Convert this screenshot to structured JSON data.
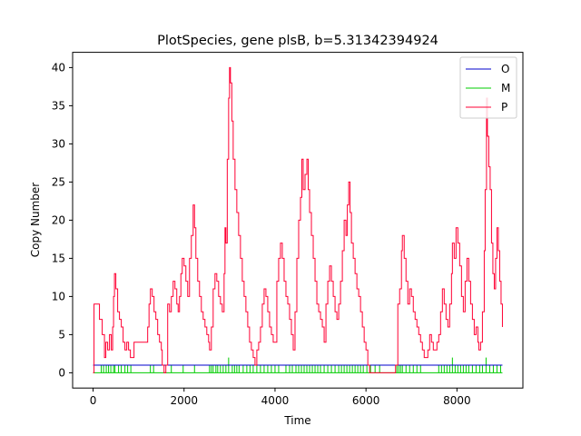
{
  "chart_data": {
    "type": "line",
    "title": "PlotSpecies, gene plsB, b=5.31342394924",
    "xlabel": "Time",
    "ylabel": "Copy Number",
    "xlim": [
      -450,
      9450
    ],
    "ylim": [
      -2,
      42
    ],
    "xticks": [
      "0",
      "2000",
      "4000",
      "6000",
      "8000"
    ],
    "yticks": [
      "0",
      "5",
      "10",
      "15",
      "20",
      "25",
      "30",
      "35",
      "40"
    ],
    "legend_position": "top-right",
    "grid": false,
    "series": [
      {
        "name": "O",
        "color": "#0000cc",
        "points": [
          [
            0,
            1
          ],
          [
            9000,
            1
          ]
        ]
      },
      {
        "name": "M",
        "color": "#00cc00",
        "style": "pulses",
        "baseline": 0,
        "events": [
          [
            180,
            1
          ],
          [
            230,
            1
          ],
          [
            290,
            1
          ],
          [
            340,
            1
          ],
          [
            390,
            1
          ],
          [
            450,
            1
          ],
          [
            480,
            1
          ],
          [
            560,
            1
          ],
          [
            620,
            1
          ],
          [
            700,
            1
          ],
          [
            760,
            1
          ],
          [
            830,
            1
          ],
          [
            1260,
            1
          ],
          [
            1330,
            1
          ],
          [
            1720,
            1
          ],
          [
            1980,
            1
          ],
          [
            2230,
            1
          ],
          [
            2560,
            1
          ],
          [
            2600,
            1
          ],
          [
            2640,
            1
          ],
          [
            2700,
            1
          ],
          [
            2740,
            1
          ],
          [
            2800,
            1
          ],
          [
            2860,
            1
          ],
          [
            2920,
            1
          ],
          [
            2980,
            2
          ],
          [
            3060,
            1
          ],
          [
            3110,
            1
          ],
          [
            3160,
            1
          ],
          [
            3210,
            1
          ],
          [
            3300,
            1
          ],
          [
            3380,
            1
          ],
          [
            3450,
            1
          ],
          [
            3520,
            1
          ],
          [
            3600,
            1
          ],
          [
            3680,
            1
          ],
          [
            3760,
            1
          ],
          [
            3840,
            1
          ],
          [
            3920,
            1
          ],
          [
            4000,
            1
          ],
          [
            4080,
            1
          ],
          [
            4240,
            1
          ],
          [
            4320,
            1
          ],
          [
            4380,
            1
          ],
          [
            4460,
            1
          ],
          [
            4520,
            1
          ],
          [
            4580,
            1
          ],
          [
            4640,
            1
          ],
          [
            4700,
            1
          ],
          [
            4760,
            1
          ],
          [
            4820,
            1
          ],
          [
            4880,
            1
          ],
          [
            4940,
            1
          ],
          [
            5000,
            1
          ],
          [
            5080,
            1
          ],
          [
            5160,
            1
          ],
          [
            5240,
            1
          ],
          [
            5320,
            1
          ],
          [
            5400,
            1
          ],
          [
            5460,
            1
          ],
          [
            5520,
            1
          ],
          [
            5580,
            1
          ],
          [
            5640,
            1
          ],
          [
            5700,
            1
          ],
          [
            5760,
            1
          ],
          [
            5820,
            1
          ],
          [
            5880,
            1
          ],
          [
            5940,
            1
          ],
          [
            6020,
            1
          ],
          [
            6100,
            1
          ],
          [
            6200,
            1
          ],
          [
            6300,
            1
          ],
          [
            6680,
            1
          ],
          [
            6720,
            1
          ],
          [
            6760,
            1
          ],
          [
            6800,
            1
          ],
          [
            6880,
            1
          ],
          [
            6960,
            1
          ],
          [
            7040,
            1
          ],
          [
            7120,
            1
          ],
          [
            7200,
            1
          ],
          [
            7600,
            1
          ],
          [
            7660,
            1
          ],
          [
            7720,
            1
          ],
          [
            7780,
            1
          ],
          [
            7840,
            1
          ],
          [
            7900,
            2
          ],
          [
            7960,
            1
          ],
          [
            8020,
            1
          ],
          [
            8080,
            1
          ],
          [
            8140,
            1
          ],
          [
            8200,
            1
          ],
          [
            8260,
            1
          ],
          [
            8340,
            1
          ],
          [
            8420,
            1
          ],
          [
            8500,
            1
          ],
          [
            8560,
            1
          ],
          [
            8640,
            2
          ],
          [
            8720,
            1
          ],
          [
            8800,
            1
          ],
          [
            8880,
            1
          ],
          [
            8960,
            1
          ]
        ]
      },
      {
        "name": "P",
        "color": "#ff0033",
        "points": [
          [
            0,
            0
          ],
          [
            20,
            9
          ],
          [
            80,
            9
          ],
          [
            140,
            7
          ],
          [
            200,
            5
          ],
          [
            250,
            2
          ],
          [
            280,
            4
          ],
          [
            320,
            3
          ],
          [
            360,
            5
          ],
          [
            400,
            3
          ],
          [
            430,
            6
          ],
          [
            450,
            10
          ],
          [
            470,
            13
          ],
          [
            500,
            11
          ],
          [
            540,
            8
          ],
          [
            580,
            7
          ],
          [
            620,
            6
          ],
          [
            660,
            4
          ],
          [
            700,
            3
          ],
          [
            740,
            4
          ],
          [
            780,
            3
          ],
          [
            820,
            2
          ],
          [
            860,
            2
          ],
          [
            900,
            4
          ],
          [
            940,
            4
          ],
          [
            980,
            4
          ],
          [
            1040,
            4
          ],
          [
            1100,
            4
          ],
          [
            1160,
            4
          ],
          [
            1200,
            6
          ],
          [
            1230,
            9
          ],
          [
            1260,
            11
          ],
          [
            1300,
            10
          ],
          [
            1340,
            8
          ],
          [
            1380,
            7
          ],
          [
            1420,
            5
          ],
          [
            1460,
            4
          ],
          [
            1500,
            3
          ],
          [
            1520,
            1
          ],
          [
            1560,
            0
          ],
          [
            1600,
            1
          ],
          [
            1640,
            9
          ],
          [
            1680,
            8
          ],
          [
            1720,
            10
          ],
          [
            1760,
            12
          ],
          [
            1800,
            11
          ],
          [
            1840,
            9
          ],
          [
            1870,
            8
          ],
          [
            1900,
            10
          ],
          [
            1930,
            13
          ],
          [
            1960,
            15
          ],
          [
            2000,
            14
          ],
          [
            2040,
            12
          ],
          [
            2080,
            10
          ],
          [
            2120,
            15
          ],
          [
            2160,
            18
          ],
          [
            2200,
            22
          ],
          [
            2230,
            19
          ],
          [
            2260,
            15
          ],
          [
            2300,
            12
          ],
          [
            2340,
            10
          ],
          [
            2380,
            8
          ],
          [
            2420,
            7
          ],
          [
            2460,
            6
          ],
          [
            2500,
            5
          ],
          [
            2540,
            4
          ],
          [
            2560,
            3
          ],
          [
            2600,
            6
          ],
          [
            2640,
            11
          ],
          [
            2680,
            13
          ],
          [
            2720,
            12
          ],
          [
            2760,
            10
          ],
          [
            2800,
            9
          ],
          [
            2840,
            8
          ],
          [
            2880,
            13
          ],
          [
            2900,
            19
          ],
          [
            2920,
            17
          ],
          [
            2950,
            28
          ],
          [
            2980,
            36
          ],
          [
            3000,
            40
          ],
          [
            3020,
            38
          ],
          [
            3050,
            33
          ],
          [
            3080,
            28
          ],
          [
            3120,
            24
          ],
          [
            3160,
            21
          ],
          [
            3200,
            18
          ],
          [
            3240,
            15
          ],
          [
            3280,
            12
          ],
          [
            3320,
            10
          ],
          [
            3360,
            8
          ],
          [
            3400,
            6
          ],
          [
            3440,
            4
          ],
          [
            3480,
            3
          ],
          [
            3520,
            2
          ],
          [
            3560,
            1
          ],
          [
            3600,
            3
          ],
          [
            3640,
            4
          ],
          [
            3680,
            6
          ],
          [
            3720,
            9
          ],
          [
            3760,
            11
          ],
          [
            3800,
            10
          ],
          [
            3840,
            8
          ],
          [
            3880,
            6
          ],
          [
            3920,
            5
          ],
          [
            3960,
            4
          ],
          [
            4000,
            4
          ],
          [
            4040,
            12
          ],
          [
            4080,
            15
          ],
          [
            4120,
            17
          ],
          [
            4160,
            15
          ],
          [
            4200,
            12
          ],
          [
            4240,
            10
          ],
          [
            4280,
            9
          ],
          [
            4320,
            7
          ],
          [
            4360,
            5
          ],
          [
            4400,
            3
          ],
          [
            4440,
            8
          ],
          [
            4480,
            15
          ],
          [
            4520,
            20
          ],
          [
            4560,
            23
          ],
          [
            4590,
            28
          ],
          [
            4620,
            24
          ],
          [
            4660,
            26
          ],
          [
            4700,
            28
          ],
          [
            4730,
            24
          ],
          [
            4760,
            21
          ],
          [
            4800,
            18
          ],
          [
            4840,
            15
          ],
          [
            4880,
            12
          ],
          [
            4920,
            9
          ],
          [
            4960,
            8
          ],
          [
            5000,
            7
          ],
          [
            5040,
            6
          ],
          [
            5080,
            4
          ],
          [
            5120,
            9
          ],
          [
            5160,
            12
          ],
          [
            5200,
            14
          ],
          [
            5240,
            12
          ],
          [
            5280,
            10
          ],
          [
            5320,
            8
          ],
          [
            5360,
            7
          ],
          [
            5400,
            9
          ],
          [
            5440,
            12
          ],
          [
            5480,
            16
          ],
          [
            5520,
            20
          ],
          [
            5560,
            18
          ],
          [
            5590,
            22
          ],
          [
            5620,
            25
          ],
          [
            5650,
            21
          ],
          [
            5680,
            17
          ],
          [
            5720,
            15
          ],
          [
            5760,
            13
          ],
          [
            5800,
            11
          ],
          [
            5840,
            10
          ],
          [
            5880,
            8
          ],
          [
            5920,
            6
          ],
          [
            5960,
            4
          ],
          [
            6000,
            3
          ],
          [
            6040,
            1
          ],
          [
            6080,
            0
          ],
          [
            6200,
            0
          ],
          [
            6400,
            0
          ],
          [
            6600,
            0
          ],
          [
            6650,
            1
          ],
          [
            6700,
            9
          ],
          [
            6740,
            11
          ],
          [
            6780,
            16
          ],
          [
            6800,
            18
          ],
          [
            6840,
            15
          ],
          [
            6880,
            12
          ],
          [
            6920,
            9
          ],
          [
            6960,
            11
          ],
          [
            7000,
            10
          ],
          [
            7040,
            8
          ],
          [
            7080,
            7
          ],
          [
            7120,
            6
          ],
          [
            7160,
            5
          ],
          [
            7200,
            4
          ],
          [
            7240,
            3
          ],
          [
            7280,
            2
          ],
          [
            7320,
            2
          ],
          [
            7360,
            3
          ],
          [
            7400,
            5
          ],
          [
            7440,
            4
          ],
          [
            7480,
            3
          ],
          [
            7520,
            3
          ],
          [
            7560,
            4
          ],
          [
            7600,
            5
          ],
          [
            7640,
            8
          ],
          [
            7680,
            11
          ],
          [
            7720,
            9
          ],
          [
            7760,
            7
          ],
          [
            7800,
            6
          ],
          [
            7840,
            9
          ],
          [
            7880,
            13
          ],
          [
            7900,
            17
          ],
          [
            7940,
            15
          ],
          [
            7980,
            19
          ],
          [
            8020,
            17
          ],
          [
            8060,
            14
          ],
          [
            8100,
            10
          ],
          [
            8140,
            8
          ],
          [
            8180,
            12
          ],
          [
            8220,
            15
          ],
          [
            8260,
            12
          ],
          [
            8300,
            9
          ],
          [
            8340,
            7
          ],
          [
            8380,
            5
          ],
          [
            8420,
            6
          ],
          [
            8460,
            4
          ],
          [
            8480,
            3
          ],
          [
            8520,
            4
          ],
          [
            8560,
            8
          ],
          [
            8600,
            16
          ],
          [
            8620,
            24
          ],
          [
            8650,
            36
          ],
          [
            8670,
            31
          ],
          [
            8700,
            27
          ],
          [
            8730,
            24
          ],
          [
            8760,
            17
          ],
          [
            8790,
            13
          ],
          [
            8820,
            11
          ],
          [
            8850,
            15
          ],
          [
            8880,
            19
          ],
          [
            8910,
            16
          ],
          [
            8940,
            12
          ],
          [
            8970,
            9
          ],
          [
            9000,
            6
          ]
        ]
      }
    ]
  }
}
